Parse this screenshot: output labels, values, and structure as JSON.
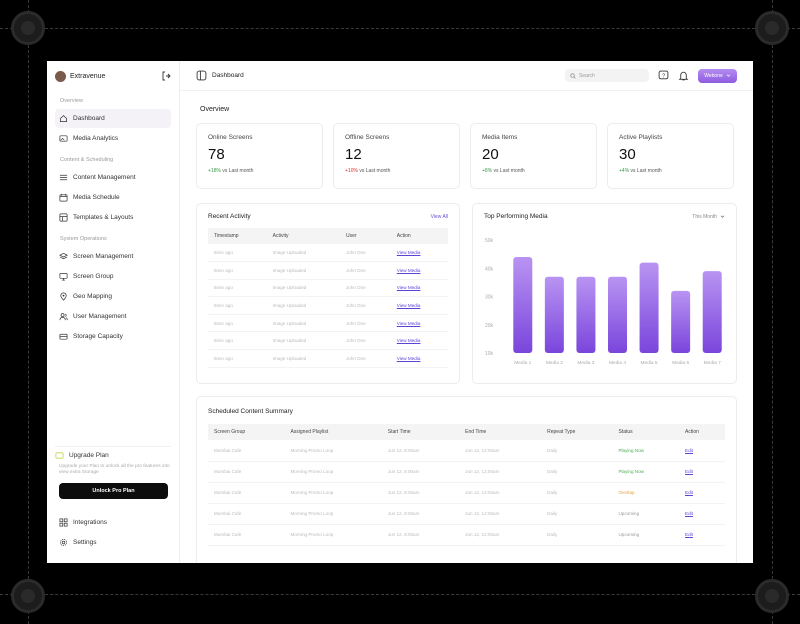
{
  "sidebar": {
    "brand": "Extravenue",
    "sections": [
      {
        "label": "Overview"
      },
      {
        "label": "Content & Scheduling"
      },
      {
        "label": "System Operations"
      }
    ],
    "items": [
      {
        "label": "Dashboard"
      },
      {
        "label": "Media Analytics"
      },
      {
        "label": "Content Management"
      },
      {
        "label": "Media Schedule"
      },
      {
        "label": "Templates & Layouts"
      },
      {
        "label": "Screen Management"
      },
      {
        "label": "Screen Group"
      },
      {
        "label": "Geo Mapping"
      },
      {
        "label": "User Management"
      },
      {
        "label": "Storage Capacity"
      }
    ],
    "upgrade": {
      "title": "Upgrade Plan",
      "description": "Upgrade your Plan to unlock all the pro features into view extra Storage",
      "button": "Unlock Pro Plan"
    },
    "bottom_items": [
      {
        "label": "Integrations"
      },
      {
        "label": "Settings"
      }
    ]
  },
  "topbar": {
    "title": "Dashboard",
    "search_placeholder": "Search",
    "org_button": "Webone"
  },
  "overview": {
    "title": "Overview",
    "stats": [
      {
        "label": "Online Screens",
        "value": "78",
        "change": "+18%",
        "suffix": "vs Last month"
      },
      {
        "label": "Offline Screens",
        "value": "12",
        "change": "+10%",
        "suffix": "vs Last month"
      },
      {
        "label": "Media Items",
        "value": "20",
        "change": "+8%",
        "suffix": "vs Last month"
      },
      {
        "label": "Active Playlists",
        "value": "30",
        "change": "+4%",
        "suffix": "vs Last month"
      }
    ]
  },
  "recent_activity": {
    "title": "Recent Activity",
    "view_all": "View All",
    "columns": [
      "Timestamp",
      "Activity",
      "User",
      "Action"
    ],
    "rows": [
      [
        "5min ago",
        "Image Uploaded",
        "John Doe",
        "View Media"
      ],
      [
        "5min ago",
        "Image Uploaded",
        "John Doe",
        "View Media"
      ],
      [
        "5min ago",
        "Image Uploaded",
        "John Doe",
        "View Media"
      ],
      [
        "5min ago",
        "Image Uploaded",
        "John Doe",
        "View Media"
      ],
      [
        "5min ago",
        "Image Uploaded",
        "John Doe",
        "View Media"
      ],
      [
        "5min ago",
        "Image Uploaded",
        "John Doe",
        "View Media"
      ],
      [
        "5min ago",
        "Image Uploaded",
        "John Doe",
        "View Media"
      ]
    ]
  },
  "top_media": {
    "title": "Top Performing Media",
    "filter": "This Month"
  },
  "chart_data": {
    "type": "bar",
    "title": "Top Performing Media",
    "categories": [
      "Media 1",
      "Media 2",
      "Media 3",
      "Media 4",
      "Media 5",
      "Media 6",
      "Media 7"
    ],
    "values": [
      44,
      37,
      37,
      37,
      42,
      32,
      39
    ],
    "yticks": [
      "50k",
      "40k",
      "30k",
      "20k",
      "10k"
    ],
    "ylim": [
      10,
      50
    ],
    "legend": "none",
    "color_top": "#b994f2",
    "color_bottom": "#7a45dc"
  },
  "schedule": {
    "title": "Scheduled Content Summary",
    "columns": [
      "Screen Group",
      "Assigned Playlist",
      "Start Time",
      "End Time",
      "Repeat Type",
      "Status",
      "Action"
    ],
    "rows": [
      {
        "cells": [
          "Mumbai Cafe",
          "Morning Promo Loop",
          "Jun 12, 8:00am",
          "Jun 12, 12:00am",
          "Daily",
          "Playing Now",
          "Edit"
        ],
        "status": "green"
      },
      {
        "cells": [
          "Mumbai Cafe",
          "Morning Promo Loop",
          "Jun 12, 8:00am",
          "Jun 12, 12:00am",
          "Daily",
          "Playing Now",
          "Edit"
        ],
        "status": "green"
      },
      {
        "cells": [
          "Mumbai Cafe",
          "Morning Promo Loop",
          "Jun 12, 8:00am",
          "Jun 12, 12:00am",
          "Daily",
          "Overlap",
          "Edit"
        ],
        "status": "orange"
      },
      {
        "cells": [
          "Mumbai Cafe",
          "Morning Promo Loop",
          "Jun 12, 8:00am",
          "Jun 12, 12:00am",
          "Daily",
          "Upcoming",
          "Edit"
        ],
        "status": "gray"
      },
      {
        "cells": [
          "Mumbai Cafe",
          "Morning Promo Loop",
          "Jun 12, 8:00am",
          "Jun 12, 12:00am",
          "Daily",
          "Upcoming",
          "Edit"
        ],
        "status": "gray"
      }
    ]
  }
}
